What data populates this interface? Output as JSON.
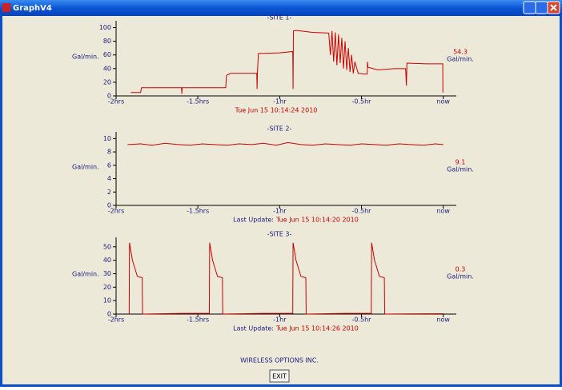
{
  "window": {
    "title": "GraphV4"
  },
  "footer": {
    "company": "WIRELESS OPTIONS INC.",
    "exit_button": "EXIT"
  },
  "chart_data": [
    {
      "type": "line",
      "title": "-SITE 1-",
      "ylabel": "Gal/min.",
      "color": "#cc0000",
      "xlim": [
        -2,
        0.08
      ],
      "ylim": [
        0,
        110
      ],
      "yticks": [
        0,
        20,
        40,
        60,
        80,
        100
      ],
      "xticks": [
        {
          "value": -2,
          "label": "-2hrs"
        },
        {
          "value": -1.5,
          "label": "-1.5hrs"
        },
        {
          "value": -1,
          "label": "-1hr"
        },
        {
          "value": -0.5,
          "label": "-0.5hr"
        },
        {
          "value": 0,
          "label": "now"
        }
      ],
      "x": [
        -1.91,
        -1.85,
        -1.845,
        -1.6,
        -1.598,
        -1.596,
        -1.33,
        -1.325,
        -1.3,
        -1.14,
        -1.138,
        -1.136,
        -1.13,
        -1.0,
        -0.92,
        -0.918,
        -0.916,
        -0.9,
        -0.8,
        -0.7,
        -0.69,
        -0.68,
        -0.67,
        -0.66,
        -0.65,
        -0.64,
        -0.63,
        -0.62,
        -0.61,
        -0.6,
        -0.59,
        -0.58,
        -0.57,
        -0.56,
        -0.55,
        -0.54,
        -0.52,
        -0.48,
        -0.465,
        -0.463,
        -0.46,
        -0.4,
        -0.3,
        -0.23,
        -0.225,
        -0.222,
        -0.1,
        -0.003,
        -0.002
      ],
      "values": [
        5,
        5,
        12,
        12,
        3,
        12,
        12,
        30,
        33,
        33,
        10,
        34,
        62,
        63,
        65,
        10,
        95,
        96,
        93,
        92,
        60,
        95,
        50,
        93,
        45,
        90,
        48,
        85,
        40,
        80,
        38,
        70,
        35,
        60,
        33,
        50,
        33,
        32,
        32,
        50,
        42,
        38,
        40,
        40,
        15,
        48,
        47,
        47,
        5
      ],
      "current_value": 54.3,
      "current_unit": "Gal/min.",
      "timestamp": "Tue Jun 15 10:14:24 2010"
    },
    {
      "type": "line",
      "title": "-SITE 2-",
      "ylabel": "Gal/min.",
      "color": "#cc0000",
      "xlim": [
        -2,
        0.08
      ],
      "ylim": [
        0,
        11
      ],
      "yticks": [
        0,
        2,
        4,
        6,
        8,
        10
      ],
      "xticks": [
        {
          "value": -2,
          "label": "-2hrs"
        },
        {
          "value": -1.5,
          "label": "-1.5hrs"
        },
        {
          "value": -1,
          "label": "-1hr"
        },
        {
          "value": -0.5,
          "label": "-0.5hr"
        },
        {
          "value": 0,
          "label": "now"
        }
      ],
      "x": [
        -1.93,
        -1.85,
        -1.78,
        -1.7,
        -1.62,
        -1.55,
        -1.47,
        -1.4,
        -1.32,
        -1.25,
        -1.17,
        -1.1,
        -1.02,
        -0.95,
        -0.87,
        -0.8,
        -0.72,
        -0.65,
        -0.57,
        -0.5,
        -0.42,
        -0.35,
        -0.27,
        -0.2,
        -0.12,
        -0.05,
        0
      ],
      "values": [
        9.1,
        9.2,
        9.0,
        9.3,
        9.1,
        9.0,
        9.2,
        9.1,
        9.0,
        9.2,
        9.1,
        9.3,
        9.0,
        9.4,
        9.1,
        9.0,
        9.2,
        9.1,
        9.0,
        9.2,
        9.1,
        9.0,
        9.2,
        9.1,
        9.0,
        9.2,
        9.1
      ],
      "current_value": 9.1,
      "current_unit": "Gal/min.",
      "update_label": "Last Update:",
      "timestamp": "Tue Jun 15 10:14:20 2010"
    },
    {
      "type": "line",
      "title": "-SITE 3-",
      "ylabel": "Gal/min.",
      "color": "#cc0000",
      "xlim": [
        -2,
        0.08
      ],
      "ylim": [
        0,
        57
      ],
      "yticks": [
        0,
        10,
        20,
        30,
        40,
        50
      ],
      "xticks": [
        {
          "value": -2,
          "label": "-2hrs"
        },
        {
          "value": -1.5,
          "label": "-1.5hrs"
        },
        {
          "value": -1,
          "label": "-1hr"
        },
        {
          "value": -0.5,
          "label": "-0.5hr"
        },
        {
          "value": 0,
          "label": "now"
        }
      ],
      "x": [
        -1.92,
        -1.918,
        -1.9,
        -1.88,
        -1.87,
        -1.84,
        -1.838,
        -1.6,
        -1.43,
        -1.428,
        -1.41,
        -1.39,
        -1.38,
        -1.35,
        -1.348,
        -1.1,
        -0.92,
        -0.918,
        -0.9,
        -0.88,
        -0.87,
        -0.84,
        -0.838,
        -0.6,
        -0.44,
        -0.438,
        -0.42,
        -0.4,
        -0.39,
        -0.36,
        -0.358,
        0
      ],
      "values": [
        0,
        53,
        40,
        32,
        28,
        27,
        0,
        0.5,
        0.5,
        53,
        40,
        32,
        28,
        27,
        0,
        0.5,
        0.5,
        53,
        40,
        32,
        28,
        27,
        0,
        0.5,
        0.5,
        53,
        40,
        32,
        28,
        27,
        0,
        0.3
      ],
      "current_value": 0.3,
      "current_unit": "Gal/min.",
      "update_label": "Last Update:",
      "timestamp": "Tue Jun 15 10:14:26 2010"
    }
  ]
}
